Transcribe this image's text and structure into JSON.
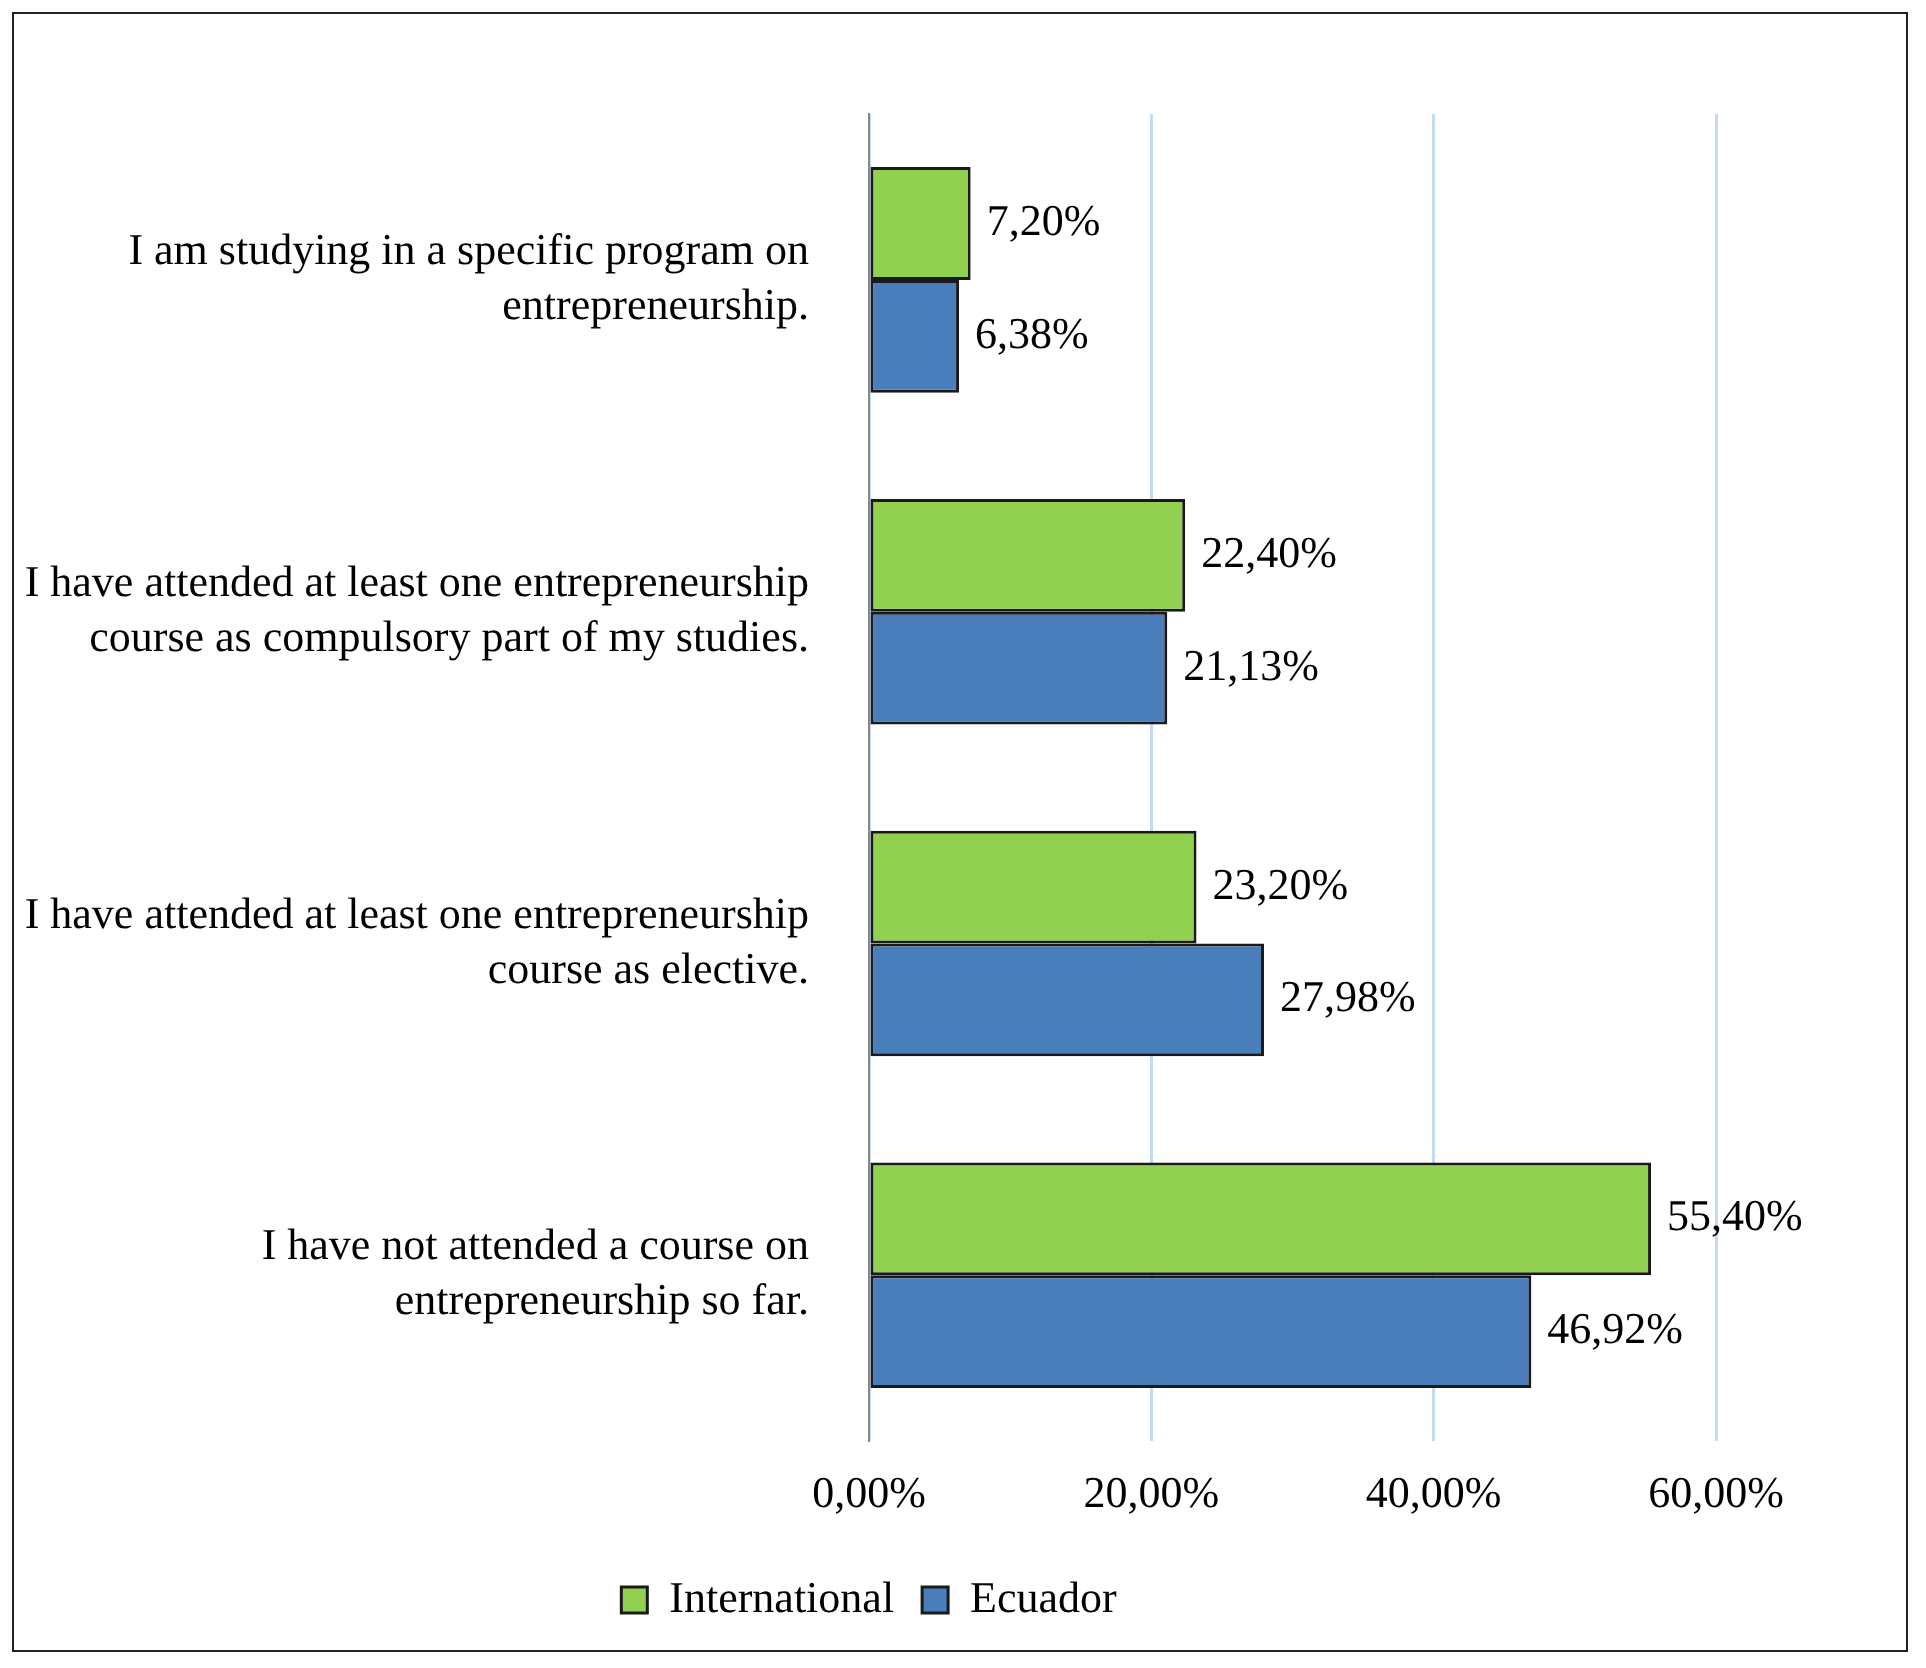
{
  "chart_data": {
    "type": "bar",
    "orientation": "horizontal",
    "categories": [
      "I am studying in a specific program on entrepreneurship.",
      "I have attended at least one entrepreneurship course as compulsory part of my studies.",
      "I have attended at least one entrepreneurship course as elective.",
      "I have not attended a course on entrepreneurship so far."
    ],
    "series": [
      {
        "name": "International",
        "color": "#92d050",
        "values": [
          7.2,
          22.4,
          23.2,
          55.4
        ],
        "value_labels": [
          "7,20%",
          "22,40%",
          "23,20%",
          "55,40%"
        ]
      },
      {
        "name": "Ecuador",
        "color": "#4a7ebb",
        "values": [
          6.38,
          21.13,
          27.98,
          46.92
        ],
        "value_labels": [
          "6,38%",
          "21,13%",
          "27,98%",
          "46,92%"
        ]
      }
    ],
    "xlim": [
      0,
      60
    ],
    "xticks": [
      {
        "value": 0,
        "label": "0,00%"
      },
      {
        "value": 20,
        "label": "20,00%"
      },
      {
        "value": 40,
        "label": "40,00%"
      },
      {
        "value": 60,
        "label": "60,00%"
      }
    ],
    "grid": "x",
    "legend": "bottom"
  }
}
